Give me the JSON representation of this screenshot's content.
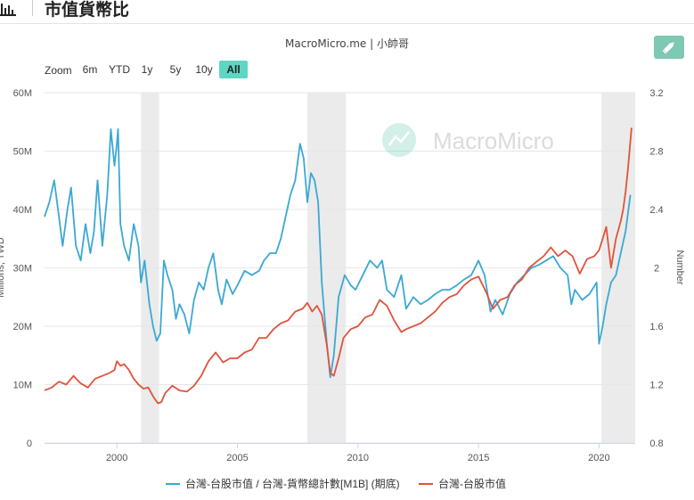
{
  "header": {
    "title": "市值貨幣比",
    "icon": "bar-chart-icon"
  },
  "subtitle": "MacroMicro.me | 小帥哥",
  "watermark": "MacroMicro",
  "edit_icon": "pencil-icon",
  "zoom": {
    "label": "Zoom",
    "options": [
      "6m",
      "YTD",
      "1y",
      "5y",
      "10y",
      "All"
    ],
    "selected": "All"
  },
  "colors": {
    "blue": "#3ba8d4",
    "red": "#e0533c",
    "recession": "#ebebeb",
    "accent": "#5fd6c4"
  },
  "chart_data": {
    "type": "line",
    "x_range": [
      1997.0,
      2021.5
    ],
    "x_ticks": [
      "2000",
      "2005",
      "2010",
      "2015",
      "2020"
    ],
    "recessions": [
      [
        2001.0,
        2001.75
      ],
      [
        2007.9,
        2009.5
      ],
      [
        2020.1,
        2021.5
      ]
    ],
    "yaxis_left": {
      "label": "Millions, TWD",
      "range": [
        0,
        60
      ],
      "ticks": [
        "0",
        "10M",
        "20M",
        "30M",
        "40M",
        "50M",
        "60M"
      ]
    },
    "yaxis_right": {
      "label": "Number",
      "range": [
        0.8,
        3.2
      ],
      "ticks": [
        "0.8",
        "1.2",
        "1.6",
        "2",
        "2.4",
        "2.8",
        "3.2"
      ]
    },
    "series": [
      {
        "name": "台灣-台股市值 / 台灣-貨幣總計數[M1B] (期底)",
        "axis": "right",
        "color": "#3ba8d4",
        "x": [
          1997.0,
          1997.2,
          1997.4,
          1997.6,
          1997.75,
          1997.95,
          1998.1,
          1998.3,
          1998.5,
          1998.7,
          1998.9,
          1999.05,
          1999.2,
          1999.4,
          1999.6,
          1999.75,
          1999.9,
          2000.0,
          2000.05,
          2000.15,
          2000.3,
          2000.5,
          2000.7,
          2000.9,
          2001.0,
          2001.15,
          2001.35,
          2001.5,
          2001.65,
          2001.8,
          2001.95,
          2002.1,
          2002.3,
          2002.45,
          2002.6,
          2002.8,
          2003.0,
          2003.2,
          2003.4,
          2003.6,
          2003.8,
          2004.0,
          2004.2,
          2004.35,
          2004.55,
          2004.8,
          2005.0,
          2005.3,
          2005.6,
          2005.9,
          2006.1,
          2006.35,
          2006.6,
          2006.8,
          2007.0,
          2007.2,
          2007.4,
          2007.6,
          2007.75,
          2007.9,
          2008.05,
          2008.2,
          2008.35,
          2008.5,
          2008.7,
          2008.85,
          2009.0,
          2009.2,
          2009.45,
          2009.7,
          2009.9,
          2010.2,
          2010.5,
          2010.8,
          2011.0,
          2011.2,
          2011.5,
          2011.8,
          2012.0,
          2012.3,
          2012.6,
          2012.9,
          2013.2,
          2013.5,
          2013.8,
          2014.1,
          2014.4,
          2014.7,
          2015.0,
          2015.25,
          2015.5,
          2015.7,
          2016.0,
          2016.3,
          2016.6,
          2016.9,
          2017.2,
          2017.5,
          2017.8,
          2018.1,
          2018.4,
          2018.7,
          2018.85,
          2019.0,
          2019.3,
          2019.6,
          2019.9,
          2020.0,
          2020.15,
          2020.3,
          2020.5,
          2020.7,
          2020.9,
          2021.1,
          2021.3
        ],
        "y": [
          2.35,
          2.45,
          2.6,
          2.35,
          2.15,
          2.4,
          2.55,
          2.15,
          2.05,
          2.3,
          2.1,
          2.25,
          2.6,
          2.15,
          2.5,
          2.95,
          2.7,
          2.85,
          2.95,
          2.3,
          2.15,
          2.05,
          2.3,
          2.15,
          1.9,
          2.05,
          1.75,
          1.6,
          1.5,
          1.55,
          2.05,
          1.95,
          1.85,
          1.65,
          1.75,
          1.68,
          1.55,
          1.78,
          1.9,
          1.85,
          2.0,
          2.1,
          1.85,
          1.75,
          1.92,
          1.82,
          1.88,
          1.98,
          1.95,
          1.98,
          2.05,
          2.1,
          2.1,
          2.2,
          2.35,
          2.5,
          2.6,
          2.85,
          2.75,
          2.45,
          2.65,
          2.6,
          2.45,
          1.9,
          1.5,
          1.25,
          1.4,
          1.8,
          1.95,
          1.88,
          1.85,
          1.95,
          2.05,
          2.0,
          2.05,
          1.85,
          1.8,
          1.95,
          1.72,
          1.8,
          1.75,
          1.78,
          1.82,
          1.85,
          1.85,
          1.88,
          1.92,
          1.95,
          2.05,
          1.95,
          1.7,
          1.78,
          1.68,
          1.82,
          1.9,
          1.95,
          2.0,
          2.02,
          2.05,
          2.08,
          2.0,
          1.95,
          1.75,
          1.85,
          1.78,
          1.82,
          1.9,
          1.48,
          1.6,
          1.75,
          1.9,
          1.95,
          2.1,
          2.25,
          2.5
        ]
      },
      {
        "name": "台灣-台股市值",
        "axis": "left",
        "color": "#e0533c",
        "x": [
          1997.0,
          1997.3,
          1997.6,
          1997.9,
          1998.2,
          1998.5,
          1998.8,
          1999.1,
          1999.4,
          1999.7,
          1999.9,
          2000.0,
          2000.15,
          2000.3,
          2000.5,
          2000.7,
          2000.9,
          2001.1,
          2001.3,
          2001.5,
          2001.7,
          2001.85,
          2002.0,
          2002.3,
          2002.6,
          2002.9,
          2003.2,
          2003.5,
          2003.8,
          2004.1,
          2004.4,
          2004.7,
          2005.0,
          2005.3,
          2005.6,
          2005.9,
          2006.2,
          2006.5,
          2006.8,
          2007.1,
          2007.4,
          2007.7,
          2007.9,
          2008.1,
          2008.3,
          2008.5,
          2008.7,
          2008.85,
          2009.0,
          2009.2,
          2009.4,
          2009.7,
          2010.0,
          2010.3,
          2010.6,
          2010.9,
          2011.2,
          2011.5,
          2011.8,
          2012.0,
          2012.3,
          2012.6,
          2012.9,
          2013.2,
          2013.5,
          2013.8,
          2014.1,
          2014.4,
          2014.7,
          2015.0,
          2015.3,
          2015.6,
          2015.9,
          2016.2,
          2016.5,
          2016.8,
          2017.1,
          2017.4,
          2017.7,
          2018.0,
          2018.3,
          2018.6,
          2018.9,
          2019.2,
          2019.5,
          2019.8,
          2020.0,
          2020.15,
          2020.3,
          2020.5,
          2020.7,
          2020.9,
          2021.0,
          2021.1,
          2021.2,
          2021.35
        ],
        "y": [
          9,
          9.5,
          10.5,
          10,
          11.5,
          10.2,
          9.5,
          11,
          11.5,
          12,
          12.5,
          14,
          13.2,
          13.5,
          12.5,
          11,
          10,
          9.3,
          9.5,
          8,
          6.8,
          7,
          8.5,
          9.8,
          9,
          8.8,
          9.8,
          11.5,
          14,
          15.5,
          13.8,
          14.5,
          14.5,
          15.5,
          16,
          18,
          18,
          19.5,
          20.5,
          21,
          22.5,
          23,
          24,
          22.5,
          23.5,
          22,
          17,
          12,
          11.5,
          14.5,
          18,
          19.5,
          20,
          21.5,
          22,
          24.5,
          23.5,
          21,
          19,
          19.5,
          20,
          20.5,
          21.5,
          22.5,
          24,
          25,
          25.5,
          27,
          28,
          28.5,
          26,
          23,
          24.5,
          25,
          27,
          28,
          30,
          31,
          32,
          33.5,
          32,
          33,
          32,
          29,
          31.5,
          32,
          33,
          35,
          37,
          30,
          35,
          38,
          40,
          43,
          47,
          54
        ]
      }
    ]
  }
}
